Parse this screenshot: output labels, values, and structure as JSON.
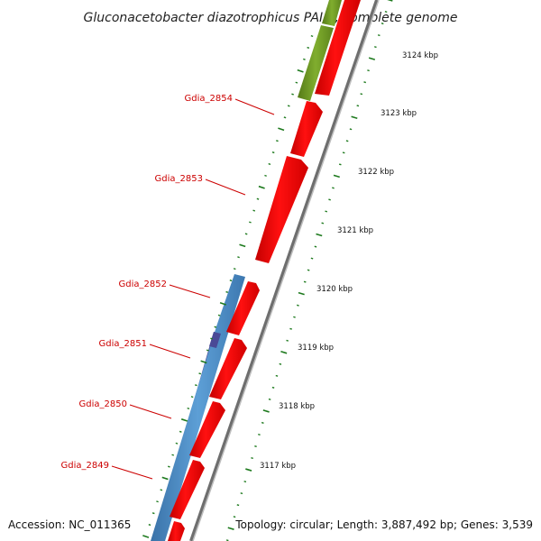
{
  "title": "Gluconacetobacter diazotrophicus PAI 5, complete genome",
  "accession": "Accession: NC_011365",
  "topology": "Topology: circular; Length: 3,887,492 bp; Genes: 3,539",
  "gene_labels": [
    "Gdia_2854",
    "Gdia_2853",
    "Gdia_2852",
    "Gdia_2851",
    "Gdia_2850",
    "Gdia_2849"
  ],
  "kbp_ticks": [
    "3124 kbp",
    "3123 kbp",
    "3122 kbp",
    "3121 kbp",
    "3120 kbp",
    "3119 kbp",
    "3118 kbp",
    "3117 kbp"
  ],
  "colors": {
    "forward_cds": "#ff0000",
    "reverse_cds_blue": "#4f8ec4",
    "reverse_cds_purple": "#4a4a96",
    "reverse_cds_green": "#6f9a24",
    "gene_label": "#cc0000",
    "ticks": "#1e7a1e",
    "backbone": "#888888"
  }
}
